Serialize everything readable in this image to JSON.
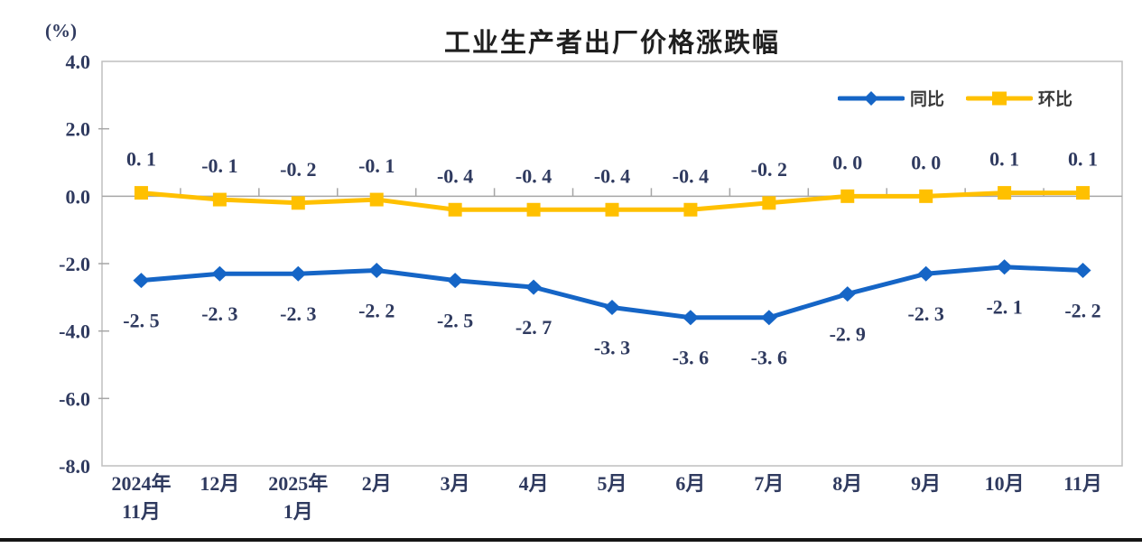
{
  "header": {
    "title": "工业生产者出厂价格涨跌幅",
    "unit_label": "(%)"
  },
  "chart_data": {
    "type": "line",
    "title": "工业生产者出厂价格涨跌幅",
    "unit": "(%)",
    "categories": [
      [
        "2024年",
        "11月"
      ],
      [
        "12月"
      ],
      [
        "2025年",
        "1月"
      ],
      [
        "2月"
      ],
      [
        "3月"
      ],
      [
        "4月"
      ],
      [
        "5月"
      ],
      [
        "6月"
      ],
      [
        "7月"
      ],
      [
        "8月"
      ],
      [
        "9月"
      ],
      [
        "10月"
      ],
      [
        "11月"
      ]
    ],
    "series": [
      {
        "name": "同比",
        "color": "#1565c6",
        "marker": "diamond",
        "label_position": "below",
        "values": [
          -2.5,
          -2.3,
          -2.3,
          -2.2,
          -2.5,
          -2.7,
          -3.3,
          -3.6,
          -3.6,
          -2.9,
          -2.3,
          -2.1,
          -2.2
        ],
        "labels": [
          "-2. 5",
          "-2. 3",
          "-2. 3",
          "-2. 2",
          "-2. 5",
          "-2. 7",
          "-3. 3",
          "-3. 6",
          "-3. 6",
          "-2. 9",
          "-2. 3",
          "-2. 1",
          "-2. 2"
        ]
      },
      {
        "name": "环比",
        "color": "#ffc000",
        "marker": "square",
        "label_position": "above",
        "values": [
          0.1,
          -0.1,
          -0.2,
          -0.1,
          -0.4,
          -0.4,
          -0.4,
          -0.4,
          -0.2,
          0.0,
          0.0,
          0.1,
          0.1
        ],
        "labels": [
          "0. 1",
          "-0. 1",
          "-0. 2",
          "-0. 1",
          "-0. 4",
          "-0. 4",
          "-0. 4",
          "-0. 4",
          "-0. 2",
          "0. 0",
          "0. 0",
          "0. 1",
          "0. 1"
        ]
      }
    ],
    "ylim": [
      -8.0,
      4.0
    ],
    "yticks": [
      4.0,
      2.0,
      0.0,
      -2.0,
      -4.0,
      -6.0,
      -8.0
    ],
    "ytick_labels": [
      "4.0",
      "2.0",
      "0.0",
      "-2.0",
      "-4.0",
      "-6.0",
      "-8.0"
    ],
    "grid": "zero-line-only",
    "legend_position": "top-right-inside",
    "colors": {
      "plot_border": "#bfbfbf",
      "axis": "#a6a6a6",
      "tick_label": "#2f3a5f"
    }
  }
}
